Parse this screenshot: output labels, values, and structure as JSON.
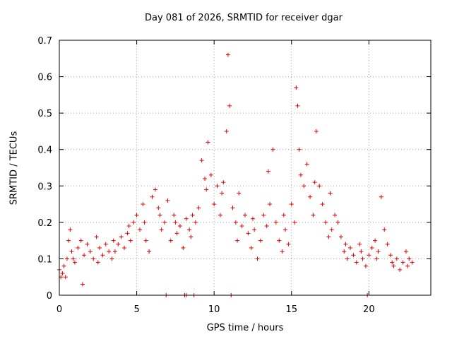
{
  "chart_data": {
    "type": "scatter",
    "title": "Day 081 of 2026, SRMTID for receiver dgar",
    "xlabel": "GPS time / hours",
    "ylabel": "SRMTID / TECUs",
    "xlim": [
      0,
      24
    ],
    "ylim": [
      0,
      0.7
    ],
    "xticks": [
      "0",
      "5",
      "10",
      "15",
      "20"
    ],
    "yticks": [
      "0",
      "0.1",
      "0.2",
      "0.3",
      "0.4",
      "0.5",
      "0.6",
      "0.7"
    ],
    "grid": true,
    "marker": "+",
    "color": "#e00000",
    "series": [
      {
        "name": "SRMTID",
        "x": [
          0.0,
          0.1,
          0.2,
          0.3,
          0.4,
          0.5,
          0.6,
          0.7,
          0.8,
          0.9,
          1.0,
          1.2,
          1.4,
          1.5,
          1.6,
          1.8,
          2.0,
          2.2,
          2.4,
          2.5,
          2.6,
          2.8,
          3.0,
          3.2,
          3.4,
          3.5,
          3.6,
          3.8,
          4.0,
          4.2,
          4.4,
          4.5,
          4.6,
          4.8,
          5.0,
          5.2,
          5.4,
          5.5,
          5.6,
          5.8,
          6.0,
          6.2,
          6.4,
          6.5,
          6.6,
          6.8,
          7.0,
          7.2,
          7.4,
          7.5,
          7.6,
          7.8,
          8.0,
          8.2,
          8.4,
          8.5,
          8.6,
          8.8,
          9.0,
          9.2,
          9.4,
          9.5,
          9.6,
          9.8,
          10.0,
          10.2,
          10.4,
          10.5,
          10.6,
          10.8,
          10.9,
          11.0,
          11.2,
          11.4,
          11.5,
          11.6,
          11.8,
          12.0,
          12.2,
          12.4,
          12.5,
          12.6,
          12.8,
          13.0,
          13.2,
          13.4,
          13.5,
          13.6,
          13.8,
          14.0,
          14.2,
          14.4,
          14.5,
          14.6,
          14.8,
          15.0,
          15.2,
          15.3,
          15.4,
          15.5,
          15.6,
          15.8,
          16.0,
          16.2,
          16.4,
          16.5,
          16.6,
          16.8,
          17.0,
          17.2,
          17.4,
          17.5,
          17.6,
          17.8,
          18.0,
          18.2,
          18.4,
          18.5,
          18.6,
          18.8,
          19.0,
          19.2,
          19.4,
          19.5,
          19.6,
          19.8,
          20.0,
          20.2,
          20.4,
          20.5,
          20.6,
          20.8,
          21.0,
          21.2,
          21.4,
          21.5,
          21.6,
          21.8,
          22.0,
          22.2,
          22.4,
          22.5,
          22.6,
          22.8,
          6.9,
          8.1,
          8.2,
          8.7,
          11.1,
          19.9
        ],
        "y": [
          0.07,
          0.05,
          0.06,
          0.08,
          0.05,
          0.1,
          0.15,
          0.18,
          0.12,
          0.1,
          0.09,
          0.13,
          0.15,
          0.03,
          0.11,
          0.14,
          0.12,
          0.1,
          0.16,
          0.09,
          0.13,
          0.11,
          0.14,
          0.12,
          0.1,
          0.15,
          0.12,
          0.14,
          0.16,
          0.13,
          0.17,
          0.19,
          0.15,
          0.2,
          0.22,
          0.18,
          0.25,
          0.2,
          0.15,
          0.12,
          0.27,
          0.29,
          0.24,
          0.22,
          0.18,
          0.2,
          0.26,
          0.15,
          0.22,
          0.2,
          0.17,
          0.19,
          0.13,
          0.21,
          0.18,
          0.16,
          0.22,
          0.2,
          0.24,
          0.37,
          0.32,
          0.29,
          0.42,
          0.33,
          0.25,
          0.3,
          0.22,
          0.28,
          0.31,
          0.45,
          0.66,
          0.52,
          0.24,
          0.2,
          0.15,
          0.28,
          0.19,
          0.22,
          0.17,
          0.13,
          0.21,
          0.18,
          0.1,
          0.15,
          0.22,
          0.19,
          0.34,
          0.25,
          0.4,
          0.2,
          0.15,
          0.12,
          0.22,
          0.18,
          0.14,
          0.25,
          0.2,
          0.57,
          0.52,
          0.4,
          0.33,
          0.3,
          0.36,
          0.27,
          0.22,
          0.31,
          0.45,
          0.3,
          0.25,
          0.2,
          0.16,
          0.28,
          0.18,
          0.22,
          0.2,
          0.16,
          0.12,
          0.14,
          0.1,
          0.13,
          0.11,
          0.09,
          0.14,
          0.12,
          0.1,
          0.08,
          0.11,
          0.13,
          0.15,
          0.1,
          0.12,
          0.27,
          0.18,
          0.14,
          0.11,
          0.09,
          0.08,
          0.1,
          0.07,
          0.09,
          0.12,
          0.08,
          0.1,
          0.09,
          0.0,
          0.0,
          0.0,
          0.0,
          0.0,
          0.0
        ]
      }
    ]
  }
}
